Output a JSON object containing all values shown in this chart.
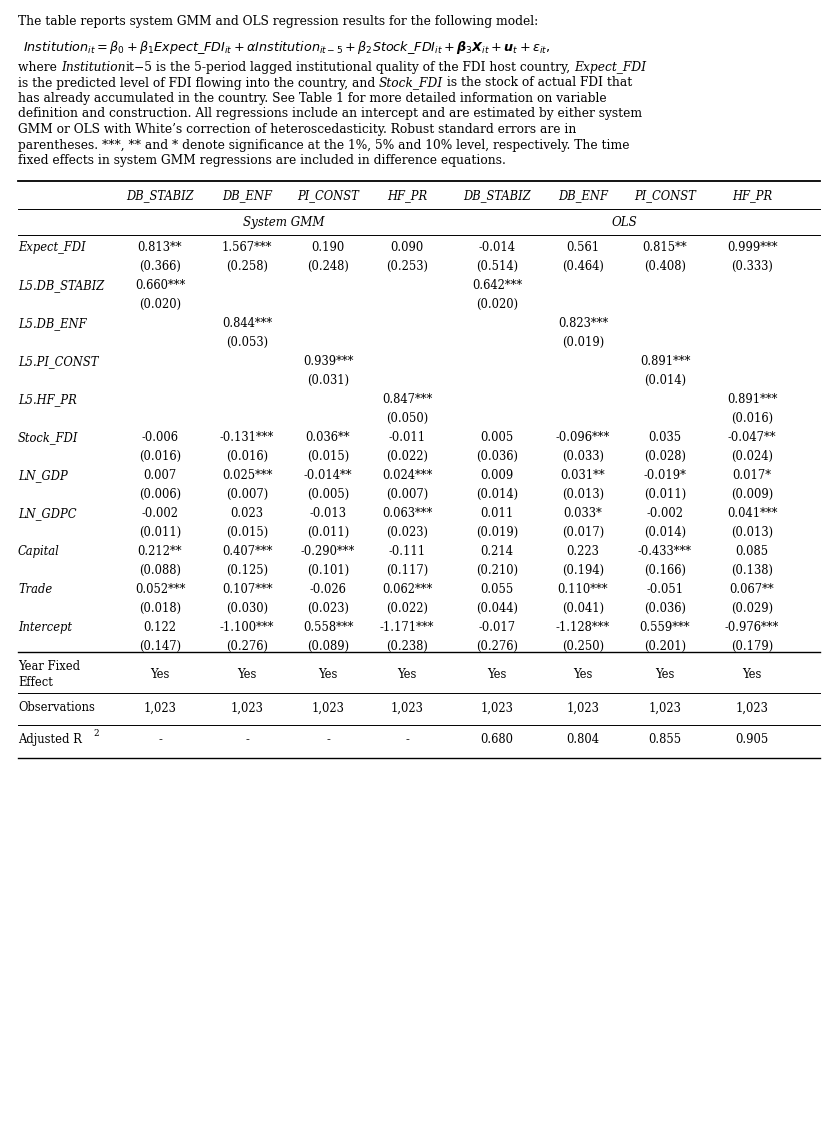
{
  "col_headers": [
    "DB_STABIZ",
    "DB_ENF",
    "PI_CONST",
    "HF_PR",
    "DB_STABIZ",
    "DB_ENF",
    "PI_CONST",
    "HF_PR"
  ],
  "rows": [
    {
      "label": "Expect_FDI",
      "values": [
        "0.813**",
        "1.567***",
        "0.190",
        "0.090",
        "-0.014",
        "0.561",
        "0.815**",
        "0.999***"
      ],
      "se": [
        "(0.366)",
        "(0.258)",
        "(0.248)",
        "(0.253)",
        "(0.514)",
        "(0.464)",
        "(0.408)",
        "(0.333)"
      ]
    },
    {
      "label": "L5.DB_STABIZ",
      "values": [
        "0.660***",
        "",
        "",
        "",
        "0.642***",
        "",
        "",
        ""
      ],
      "se": [
        "(0.020)",
        "",
        "",
        "",
        "(0.020)",
        "",
        "",
        ""
      ]
    },
    {
      "label": "L5.DB_ENF",
      "values": [
        "",
        "0.844***",
        "",
        "",
        "",
        "0.823***",
        "",
        ""
      ],
      "se": [
        "",
        "(0.053)",
        "",
        "",
        "",
        "(0.019)",
        "",
        ""
      ]
    },
    {
      "label": "L5.PI_CONST",
      "values": [
        "",
        "",
        "0.939***",
        "",
        "",
        "",
        "0.891***",
        ""
      ],
      "se": [
        "",
        "",
        "(0.031)",
        "",
        "",
        "",
        "(0.014)",
        ""
      ]
    },
    {
      "label": "L5.HF_PR",
      "values": [
        "",
        "",
        "",
        "0.847***",
        "",
        "",
        "",
        "0.891***"
      ],
      "se": [
        "",
        "",
        "",
        "(0.050)",
        "",
        "",
        "",
        "(0.016)"
      ]
    },
    {
      "label": "Stock_FDI",
      "values": [
        "-0.006",
        "-0.131***",
        "0.036**",
        "-0.011",
        "0.005",
        "-0.096***",
        "0.035",
        "-0.047**"
      ],
      "se": [
        "(0.016)",
        "(0.016)",
        "(0.015)",
        "(0.022)",
        "(0.036)",
        "(0.033)",
        "(0.028)",
        "(0.024)"
      ]
    },
    {
      "label": "LN_GDP",
      "values": [
        "0.007",
        "0.025***",
        "-0.014**",
        "0.024***",
        "0.009",
        "0.031**",
        "-0.019*",
        "0.017*"
      ],
      "se": [
        "(0.006)",
        "(0.007)",
        "(0.005)",
        "(0.007)",
        "(0.014)",
        "(0.013)",
        "(0.011)",
        "(0.009)"
      ]
    },
    {
      "label": "LN_GDPC",
      "values": [
        "-0.002",
        "0.023",
        "-0.013",
        "0.063***",
        "0.011",
        "0.033*",
        "-0.002",
        "0.041***"
      ],
      "se": [
        "(0.011)",
        "(0.015)",
        "(0.011)",
        "(0.023)",
        "(0.019)",
        "(0.017)",
        "(0.014)",
        "(0.013)"
      ]
    },
    {
      "label": "Capital",
      "values": [
        "0.212**",
        "0.407***",
        "-0.290***",
        "-0.111",
        "0.214",
        "0.223",
        "-0.433***",
        "0.085"
      ],
      "se": [
        "(0.088)",
        "(0.125)",
        "(0.101)",
        "(0.117)",
        "(0.210)",
        "(0.194)",
        "(0.166)",
        "(0.138)"
      ]
    },
    {
      "label": "Trade",
      "values": [
        "0.052***",
        "0.107***",
        "-0.026",
        "0.062***",
        "0.055",
        "0.110***",
        "-0.051",
        "0.067**"
      ],
      "se": [
        "(0.018)",
        "(0.030)",
        "(0.023)",
        "(0.022)",
        "(0.044)",
        "(0.041)",
        "(0.036)",
        "(0.029)"
      ]
    },
    {
      "label": "Intercept",
      "values": [
        "0.122",
        "-1.100***",
        "0.558***",
        "-1.171***",
        "-0.017",
        "-1.128***",
        "0.559***",
        "-0.976***"
      ],
      "se": [
        "(0.147)",
        "(0.276)",
        "(0.089)",
        "(0.238)",
        "(0.276)",
        "(0.250)",
        "(0.201)",
        "(0.179)"
      ]
    }
  ],
  "year_fixed": [
    "Yes",
    "Yes",
    "Yes",
    "Yes",
    "Yes",
    "Yes",
    "Yes",
    "Yes"
  ],
  "observations": [
    "1,023",
    "1,023",
    "1,023",
    "1,023",
    "1,023",
    "1,023",
    "1,023",
    "1,023"
  ],
  "adj_r2": [
    "-",
    "-",
    "-",
    "-",
    "0.680",
    "0.804",
    "0.855",
    "0.905"
  ],
  "fs_note": 8.8,
  "fs_eq": 9.2,
  "fs_table": 8.3,
  "page_width": 8.37,
  "page_height": 11.37
}
